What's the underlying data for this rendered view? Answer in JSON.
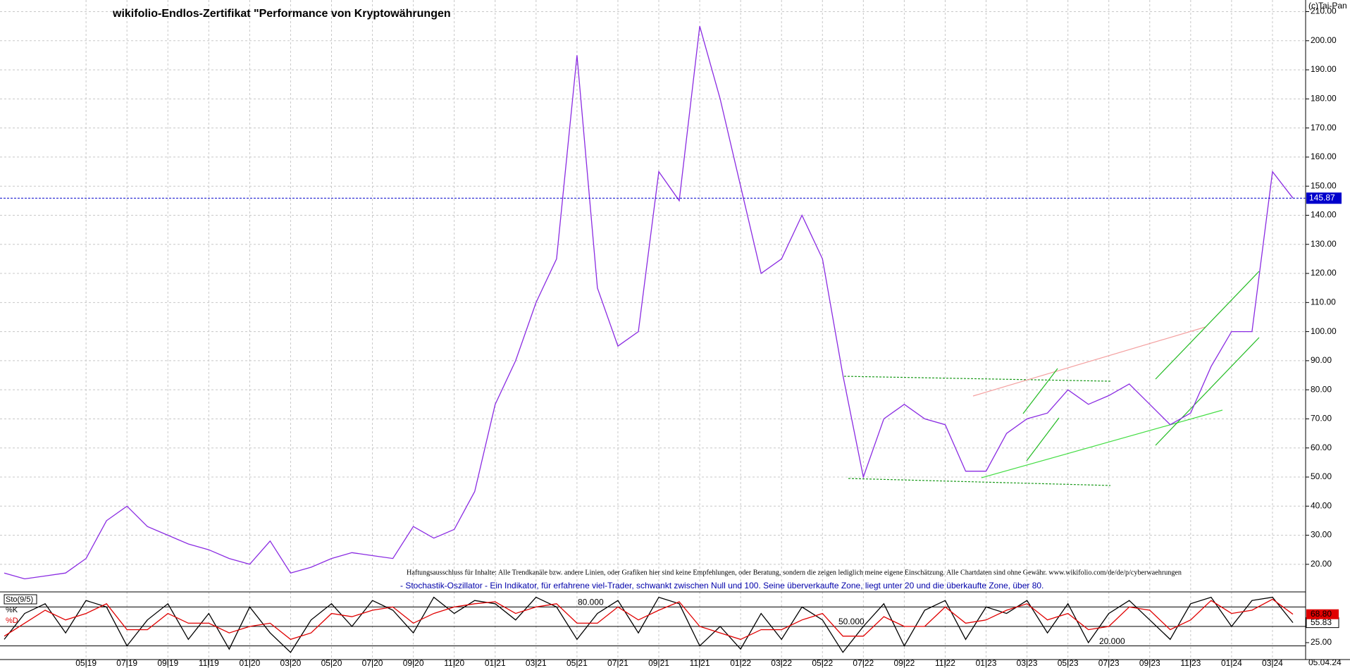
{
  "chart_data": [
    {
      "type": "line",
      "title": "wikifolio-Endlos-Zertifikat \"Performance von Kryptowährungen",
      "annotations": [
        "(c)Tai-Pan",
        "Haftungsausschluss für Inhalte: Alle Trendkanäle bzw. andere Linien, oder Grafiken hier sind keine Empfehlungen, oder Beratung, sondern die zeigen lediglich meine eigene Einschätzung. Alle Chartdaten sind ohne Gewähr.  www.wikifolio.com/de/de/p/cyberwaehrungen",
        "05.04.24"
      ],
      "x": [
        "2019-01",
        "2019-02",
        "2019-03",
        "2019-04",
        "2019-05",
        "2019-06",
        "2019-07",
        "2019-08",
        "2019-09",
        "2019-10",
        "2019-11",
        "2019-12",
        "2020-01",
        "2020-02",
        "2020-03",
        "2020-04",
        "2020-05",
        "2020-06",
        "2020-07",
        "2020-08",
        "2020-09",
        "2020-10",
        "2020-11",
        "2020-12",
        "2021-01",
        "2021-02",
        "2021-03",
        "2021-04",
        "2021-05",
        "2021-06",
        "2021-07",
        "2021-08",
        "2021-09",
        "2021-10",
        "2021-11",
        "2021-12",
        "2022-01",
        "2022-02",
        "2022-03",
        "2022-04",
        "2022-05",
        "2022-06",
        "2022-07",
        "2022-08",
        "2022-09",
        "2022-10",
        "2022-11",
        "2022-12",
        "2023-01",
        "2023-02",
        "2023-03",
        "2023-04",
        "2023-05",
        "2023-06",
        "2023-07",
        "2023-08",
        "2023-09",
        "2023-10",
        "2023-11",
        "2023-12",
        "2024-01",
        "2024-02",
        "2024-03",
        "2024-04"
      ],
      "series": [
        {
          "name": "wikifolio",
          "color": "#8a2be2",
          "values": [
            17,
            15,
            16,
            17,
            22,
            35,
            40,
            33,
            30,
            27,
            25,
            22,
            20,
            28,
            17,
            19,
            22,
            24,
            23,
            22,
            33,
            29,
            32,
            45,
            75,
            90,
            110,
            125,
            195,
            115,
            95,
            100,
            155,
            145,
            205,
            180,
            150,
            120,
            125,
            140,
            125,
            85,
            50,
            70,
            75,
            70,
            68,
            52,
            52,
            65,
            70,
            72,
            80,
            75,
            78,
            82,
            75,
            68,
            72,
            88,
            100,
            100,
            155,
            145.87
          ]
        }
      ],
      "last_price": 145.87,
      "price_line_color": "#0000cc",
      "xlim": [
        "2019-01",
        "2024-04"
      ],
      "xticks": [
        {
          "value": "2019-05",
          "label": "05|19"
        },
        {
          "value": "2019-07",
          "label": "07|19"
        },
        {
          "value": "2019-09",
          "label": "09|19"
        },
        {
          "value": "2019-11",
          "label": "11|19"
        },
        {
          "value": "2020-01",
          "label": "01|20"
        },
        {
          "value": "2020-03",
          "label": "03|20"
        },
        {
          "value": "2020-05",
          "label": "05|20"
        },
        {
          "value": "2020-07",
          "label": "07|20"
        },
        {
          "value": "2020-09",
          "label": "09|20"
        },
        {
          "value": "2020-11",
          "label": "11|20"
        },
        {
          "value": "2021-01",
          "label": "01|21"
        },
        {
          "value": "2021-03",
          "label": "03|21"
        },
        {
          "value": "2021-05",
          "label": "05|21"
        },
        {
          "value": "2021-07",
          "label": "07|21"
        },
        {
          "value": "2021-09",
          "label": "09|21"
        },
        {
          "value": "2021-11",
          "label": "11|21"
        },
        {
          "value": "2022-01",
          "label": "01|22"
        },
        {
          "value": "2022-03",
          "label": "03|22"
        },
        {
          "value": "2022-05",
          "label": "05|22"
        },
        {
          "value": "2022-07",
          "label": "07|22"
        },
        {
          "value": "2022-09",
          "label": "09|22"
        },
        {
          "value": "2022-11",
          "label": "11|22"
        },
        {
          "value": "2023-01",
          "label": "01|23"
        },
        {
          "value": "2023-03",
          "label": "03|23"
        },
        {
          "value": "2023-05",
          "label": "05|23"
        },
        {
          "value": "2023-07",
          "label": "07|23"
        },
        {
          "value": "2023-09",
          "label": "09|23"
        },
        {
          "value": "2023-11",
          "label": "11|23"
        },
        {
          "value": "2024-01",
          "label": "01|24"
        },
        {
          "value": "2024-03",
          "label": "03|24"
        }
      ],
      "ylim": [
        11,
        214
      ],
      "yticks": [
        {
          "value": 20,
          "label": "20.00"
        },
        {
          "value": 30,
          "label": "30.00"
        },
        {
          "value": 40,
          "label": "40.00"
        },
        {
          "value": 50,
          "label": "50.00"
        },
        {
          "value": 60,
          "label": "60.00"
        },
        {
          "value": 70,
          "label": "70.00"
        },
        {
          "value": 80,
          "label": "80.00"
        },
        {
          "value": 90,
          "label": "90.00"
        },
        {
          "value": 100,
          "label": "100.00"
        },
        {
          "value": 110,
          "label": "110.00"
        },
        {
          "value": 120,
          "label": "120.00"
        },
        {
          "value": 130,
          "label": "130.00"
        },
        {
          "value": 140,
          "label": "140.00"
        },
        {
          "value": 150,
          "label": "150.00"
        },
        {
          "value": 160,
          "label": "160.00"
        },
        {
          "value": 170,
          "label": "170.00"
        },
        {
          "value": 180,
          "label": "180.00"
        },
        {
          "value": 190,
          "label": "190.00"
        },
        {
          "value": 200,
          "label": "200.00"
        },
        {
          "value": 210,
          "label": "210.00"
        }
      ],
      "grid": true
    },
    {
      "type": "line",
      "title": "Sto(9/5)",
      "subtitle": "- Stochastik-Oszillator - Ein Indikator, für erfahrene viel-Trader, schwankt zwischen Null und 100. Seine überverkaufte Zone, liegt unter 20 und die überkaufte Zone, über 80.",
      "x_ref": 0,
      "series": [
        {
          "name": "%K",
          "color": "#000000",
          "values": [
            30,
            70,
            85,
            40,
            90,
            80,
            20,
            60,
            85,
            30,
            70,
            15,
            80,
            40,
            10,
            60,
            85,
            50,
            90,
            75,
            40,
            95,
            70,
            90,
            85,
            60,
            95,
            80,
            30,
            70,
            90,
            40,
            95,
            85,
            20,
            50,
            15,
            70,
            30,
            80,
            60,
            10,
            50,
            85,
            20,
            75,
            90,
            30,
            80,
            70,
            90,
            40,
            85,
            25,
            70,
            90,
            60,
            30,
            85,
            95,
            50,
            90,
            95,
            55.83
          ],
          "value_labels": [
            null,
            null,
            null,
            null,
            null,
            null,
            null,
            null,
            null,
            null,
            null,
            null,
            null,
            null,
            null,
            null,
            null,
            null,
            null,
            null,
            null,
            null,
            null,
            null,
            null,
            null,
            null,
            null,
            null,
            null,
            null,
            null,
            null,
            null,
            null,
            null,
            null,
            null,
            null,
            null,
            null,
            null,
            null,
            null,
            null,
            null,
            null,
            null,
            null,
            null,
            null,
            null,
            null,
            null,
            null,
            null,
            null,
            null,
            null,
            null,
            null,
            null,
            null,
            "55.83"
          ]
        },
        {
          "name": "%D",
          "color": "#e00000",
          "values": [
            35,
            55,
            75,
            60,
            70,
            85,
            45,
            45,
            70,
            55,
            55,
            40,
            50,
            55,
            30,
            40,
            70,
            65,
            75,
            80,
            55,
            70,
            80,
            85,
            88,
            70,
            80,
            85,
            55,
            55,
            80,
            60,
            75,
            88,
            50,
            40,
            30,
            45,
            45,
            60,
            70,
            35,
            35,
            65,
            50,
            50,
            80,
            55,
            60,
            75,
            85,
            60,
            70,
            45,
            50,
            80,
            75,
            45,
            60,
            90,
            70,
            75,
            92,
            68.8
          ],
          "value_labels": [
            null,
            null,
            null,
            null,
            null,
            null,
            null,
            null,
            null,
            null,
            null,
            null,
            null,
            null,
            null,
            null,
            null,
            null,
            null,
            null,
            null,
            null,
            null,
            null,
            null,
            null,
            null,
            null,
            null,
            null,
            null,
            null,
            null,
            null,
            null,
            null,
            null,
            null,
            null,
            null,
            null,
            null,
            null,
            null,
            null,
            null,
            null,
            null,
            null,
            null,
            null,
            null,
            null,
            null,
            null,
            null,
            null,
            null,
            null,
            null,
            null,
            null,
            null,
            "68.80"
          ]
        }
      ],
      "ylim": [
        0,
        100
      ],
      "yticks": [
        {
          "value": 25,
          "label": "25.00"
        }
      ],
      "levels": [
        {
          "value": 80,
          "label": "80.000"
        },
        {
          "value": 50,
          "label": "50.000"
        },
        {
          "value": 20,
          "label": "20.000"
        }
      ]
    }
  ]
}
